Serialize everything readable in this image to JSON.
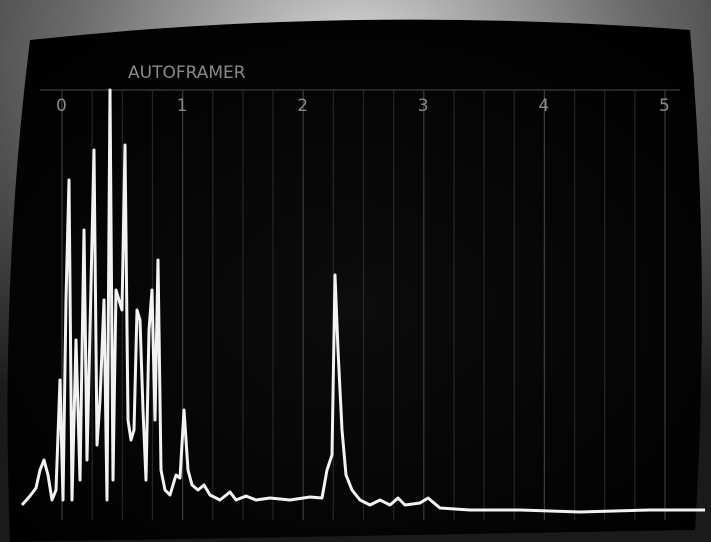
{
  "screen": {
    "title": "AUTOFRAMER",
    "scale_labels": [
      "0",
      "1",
      "2",
      "3",
      "4",
      "5"
    ]
  }
}
